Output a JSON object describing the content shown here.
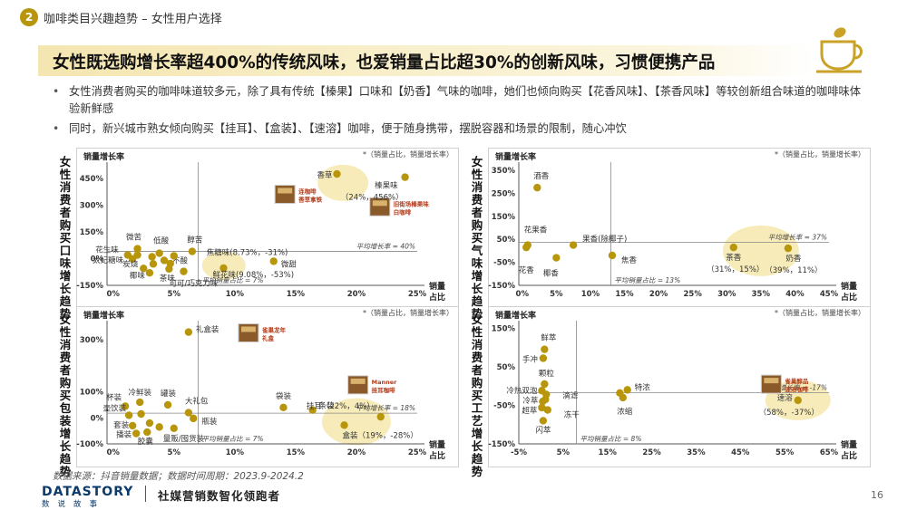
{
  "header": {
    "section_number": "2",
    "section_title": "咖啡类目兴趣趋势 – 女性用户选择"
  },
  "headline": "女性既选购增长率超400%的传统风味，也爱销量占比超30%的创新风味，习惯便携产品",
  "bullets": [
    "女性消费者购买的咖啡味道较多元，除了具有传统【榛果】口味和【奶香】气味的咖啡，她们也倾向购买【花香风味】、【茶香风味】等较创新组合味道的咖啡味体验新鲜感",
    "同时，新兴城市熟女倾向购买【挂耳】、【盒装】、【速溶】咖啡，便于随身携带，摆脱容器和场景的限制，随心冲饮"
  ],
  "footer": {
    "source": "数据来源：抖音销量数据；数据时间周期：2023.9-2024.2",
    "logo_main": "DATASTORY",
    "logo_sub": "数说故事",
    "slogan": "社媒营销数智化领跑者",
    "page": "16"
  },
  "accent_color": "#b8960c",
  "highlight_color": "#f5e7a8",
  "icons": [
    "coffee-cup-icon"
  ],
  "chart_data": [
    {
      "id": "taste",
      "type": "scatter",
      "side_title": "女性消费者购买口味增长趋势",
      "ylabel": "销量增长率",
      "xlabel_top": "销量",
      "xlabel_bottom": "占比",
      "legend_note": "*（销量占比，销量增长率）",
      "xlim": [
        -0.5,
        25
      ],
      "ylim": [
        -150,
        520
      ],
      "x_ticks": [
        {
          "v": 0,
          "t": "0%"
        },
        {
          "v": 5,
          "t": "5%"
        },
        {
          "v": 10,
          "t": "10%"
        },
        {
          "v": 15,
          "t": "15%"
        },
        {
          "v": 20,
          "t": "20%"
        },
        {
          "v": 25,
          "t": "25%"
        }
      ],
      "y_ticks": [
        {
          "v": 450,
          "t": "450%"
        },
        {
          "v": 300,
          "t": "300%"
        },
        {
          "v": 150,
          "t": "150%"
        },
        {
          "v": 0,
          "t": "0%"
        },
        {
          "v": -150,
          "t": "-150%"
        }
      ],
      "avg_x": 7,
      "avg_y": 40,
      "avg_x_label": "平均销量占比 = 7%",
      "avg_y_label": "平均增长率 = 40%",
      "highlights": [
        {
          "x": 18.9,
          "y": 424,
          "rx": 28,
          "ry": 20
        },
        {
          "x": 9.1,
          "y": -39,
          "rx": 24,
          "ry": 16
        }
      ],
      "points": [
        {
          "label": "香草",
          "x": 18.4,
          "y": 474,
          "la": "end",
          "dx": -5,
          "dy": 4
        },
        {
          "label": "榛果味",
          "x": 24,
          "y": 456,
          "la": "end",
          "dx": -8,
          "dy": 12
        },
        {
          "label": "（24%，456%）",
          "x": 24,
          "y": 456,
          "la": "end",
          "dx": -2,
          "dy": 25,
          "text_only": true
        },
        {
          "label": "焦糖味(8.73%，-31%)",
          "x": 8.73,
          "y": -31,
          "la": "start",
          "dx": -14,
          "dy": -10,
          "text_only": true
        },
        {
          "label": "鲜花味(9.08%，-53%)",
          "x": 9.08,
          "y": -53,
          "la": "start",
          "dx": -12,
          "dy": 10
        },
        {
          "label": "微甜",
          "x": 13.2,
          "y": -15,
          "la": "start",
          "dx": 8,
          "dy": 6
        },
        {
          "label": "微苦",
          "x": 2.0,
          "y": 55,
          "la": "middle",
          "dx": -4,
          "dy": -10
        },
        {
          "label": "低酸",
          "x": 3.8,
          "y": 30,
          "la": "middle",
          "dx": 2,
          "dy": -11
        },
        {
          "label": "醇苦",
          "x": 6.5,
          "y": 40,
          "la": "middle",
          "dx": 3,
          "dy": -10
        },
        {
          "label": "花生味",
          "x": 1.2,
          "y": 20,
          "la": "end",
          "dx": -10,
          "dy": -3
        },
        {
          "label": "太妃糖味",
          "x": 1.6,
          "y": -2,
          "la": "end",
          "dx": -10,
          "dy": 4
        },
        {
          "label": "不酸",
          "x": 4.2,
          "y": -10,
          "la": "start",
          "dx": 9,
          "dy": 3
        },
        {
          "label": "炭烧",
          "x": 2.5,
          "y": -55,
          "la": "end",
          "dx": -6,
          "dy": -2
        },
        {
          "label": "椰味",
          "x": 3.0,
          "y": -80,
          "la": "end",
          "dx": -5,
          "dy": 6
        },
        {
          "label": "茶味",
          "x": 4.6,
          "y": -58,
          "la": "middle",
          "dx": -2,
          "dy": 13
        },
        {
          "label": "可可/巧克力味",
          "x": 5.8,
          "y": -72,
          "la": "start",
          "dx": -16,
          "dy": 16
        },
        {
          "label": "",
          "x": 2.0,
          "y": 20
        },
        {
          "label": "",
          "x": 3.2,
          "y": 10
        },
        {
          "label": "",
          "x": 5.0,
          "y": 15
        },
        {
          "label": "",
          "x": 3.3,
          "y": -30
        },
        {
          "label": "",
          "x": 4.7,
          "y": -28
        }
      ],
      "products": [
        {
          "x": 14.5,
          "y": 350,
          "caption": [
            "连咖啡",
            "香草拿铁"
          ]
        },
        {
          "x": 22.3,
          "y": 280,
          "caption": [
            "旧街场榛果味",
            "白咖啡"
          ]
        }
      ]
    },
    {
      "id": "aroma",
      "type": "scatter",
      "side_title": "女性消费者购买气味增长趋势",
      "ylabel": "销量增长率",
      "xlabel_top": "销量",
      "xlabel_bottom": "占比",
      "legend_note": "*（销量占比，销量增长率）",
      "xlim": [
        -0.5,
        45
      ],
      "ylim": [
        -150,
        370
      ],
      "x_ticks": [
        {
          "v": 0,
          "t": "0%"
        },
        {
          "v": 5,
          "t": "5%"
        },
        {
          "v": 10,
          "t": "10%"
        },
        {
          "v": 15,
          "t": "15%"
        },
        {
          "v": 20,
          "t": "20%"
        },
        {
          "v": 25,
          "t": "25%"
        },
        {
          "v": 30,
          "t": "30%"
        },
        {
          "v": 35,
          "t": "35%"
        },
        {
          "v": 40,
          "t": "40%"
        },
        {
          "v": 45,
          "t": "45%"
        }
      ],
      "y_ticks": [
        {
          "v": 350,
          "t": "350%"
        },
        {
          "v": 250,
          "t": "250%"
        },
        {
          "v": 150,
          "t": "150%"
        },
        {
          "v": 50,
          "t": "50%"
        },
        {
          "v": -50,
          "t": "-50%"
        },
        {
          "v": -150,
          "t": "-150%"
        }
      ],
      "avg_x": 13,
      "avg_y": 37,
      "avg_x_label": "平均销量占比 = 13%",
      "avg_y_label": "平均增长率 = 37%",
      "highlights": [
        {
          "x": 35,
          "y": 0,
          "rx": 42,
          "ry": 28
        }
      ],
      "points": [
        {
          "label": "酒香",
          "x": 2.2,
          "y": 275,
          "la": "start",
          "dx": -4,
          "dy": -10
        },
        {
          "label": "花果香",
          "x": 0.8,
          "y": 25,
          "la": "start",
          "dx": -4,
          "dy": -14
        },
        {
          "label": "花香",
          "x": 0.6,
          "y": 15,
          "la": "middle",
          "dx": 0,
          "dy": 28
        },
        {
          "label": "椰香",
          "x": 5.0,
          "y": -30,
          "la": "middle",
          "dx": -6,
          "dy": 20
        },
        {
          "label": "果香(除椰子)",
          "x": 7.5,
          "y": 25,
          "la": "start",
          "dx": 10,
          "dy": -4
        },
        {
          "label": "焦香",
          "x": 13.2,
          "y": -20,
          "la": "start",
          "dx": 10,
          "dy": 8
        },
        {
          "label": "茶香",
          "x": 31,
          "y": 15,
          "la": "middle",
          "dx": 0,
          "dy": 14
        },
        {
          "label": "（31%，15%）",
          "x": 31,
          "y": 15,
          "la": "middle",
          "dx": 2,
          "dy": 27,
          "text_only": true
        },
        {
          "label": "奶香",
          "x": 39,
          "y": 11,
          "la": "middle",
          "dx": 6,
          "dy": 14
        },
        {
          "label": "（39%，11%）",
          "x": 39,
          "y": 11,
          "la": "middle",
          "dx": 6,
          "dy": 27,
          "text_only": true
        }
      ],
      "products": []
    },
    {
      "id": "package",
      "type": "scatter",
      "side_title": "女性消费者购买包装增长趋势",
      "ylabel": "销量增长率",
      "xlabel_top": "销量",
      "xlabel_bottom": "占比",
      "legend_note": "*（销量占比，销量增长率）",
      "xlim": [
        -0.5,
        25
      ],
      "ylim": [
        -100,
        360
      ],
      "x_ticks": [
        {
          "v": 0,
          "t": "0%"
        },
        {
          "v": 5,
          "t": "5%"
        },
        {
          "v": 10,
          "t": "10%"
        },
        {
          "v": 15,
          "t": "15%"
        },
        {
          "v": 20,
          "t": "20%"
        },
        {
          "v": 25,
          "t": "25%"
        }
      ],
      "y_ticks": [
        {
          "v": 300,
          "t": "300%"
        },
        {
          "v": 100,
          "t": "100%"
        },
        {
          "v": 0,
          "t": "0%"
        },
        {
          "v": -100,
          "t": "-100%"
        }
      ],
      "avg_x": 7,
      "avg_y": 18,
      "avg_x_label": "平均销量占比 = 7%",
      "avg_y_label": "平均增长率 = 18%",
      "highlights": [
        {
          "x": 20,
          "y": -15,
          "rx": 38,
          "ry": 26
        }
      ],
      "points": [
        {
          "label": "礼盒装",
          "x": 6.2,
          "y": 330,
          "la": "start",
          "dx": 8,
          "dy": 0
        },
        {
          "label": "袋装",
          "x": 14,
          "y": 40,
          "la": "middle",
          "dx": 0,
          "dy": -10
        },
        {
          "label": "条装",
          "x": 16.4,
          "y": 30,
          "la": "start",
          "dx": 7,
          "dy": -2
        },
        {
          "label": "挂耳（22%，4%）",
          "x": 22,
          "y": 4,
          "la": "end",
          "dx": -7,
          "dy": -9
        },
        {
          "label": "盒装（19%，-28%）",
          "x": 19,
          "y": -28,
          "la": "start",
          "dx": -2,
          "dy": 14
        },
        {
          "label": "罐装",
          "x": 4.5,
          "y": 50,
          "la": "start",
          "dx": -8,
          "dy": -10
        },
        {
          "label": "大礼包",
          "x": 6.2,
          "y": 20,
          "la": "start",
          "dx": -4,
          "dy": -10
        },
        {
          "label": "瓶装",
          "x": 6.6,
          "y": -2,
          "la": "start",
          "dx": 9,
          "dy": 6
        },
        {
          "label": "量贩/囤货装",
          "x": 5.0,
          "y": -40,
          "la": "start",
          "dx": -12,
          "dy": 14
        },
        {
          "label": "胶囊",
          "x": 2.8,
          "y": -55,
          "la": "middle",
          "dx": -2,
          "dy": 13
        },
        {
          "label": "杯装",
          "x": 1.0,
          "y": 45,
          "la": "end",
          "dx": -4,
          "dy": -7
        },
        {
          "label": "冷鲜装",
          "x": 2.2,
          "y": 60,
          "la": "middle",
          "dx": 0,
          "dy": -8
        },
        {
          "label": "壶饮装",
          "x": 1.3,
          "y": 10,
          "la": "end",
          "dx": -3,
          "dy": -5
        },
        {
          "label": "套装",
          "x": 1.6,
          "y": -30,
          "la": "end",
          "dx": -4,
          "dy": 2
        },
        {
          "label": "播装",
          "x": 1.9,
          "y": -60,
          "la": "end",
          "dx": -5,
          "dy": 4
        },
        {
          "label": "",
          "x": 2.3,
          "y": 15
        },
        {
          "label": "",
          "x": 3.0,
          "y": -20
        },
        {
          "label": "",
          "x": 3.8,
          "y": -35
        }
      ],
      "products": [
        {
          "x": 11.5,
          "y": 320,
          "caption": [
            "雀巢龙年",
            "礼盒"
          ]
        },
        {
          "x": 20.5,
          "y": 120,
          "caption": [
            "Manner",
            "挂耳咖啡"
          ]
        }
      ]
    },
    {
      "id": "process",
      "type": "scatter",
      "side_title": "女性消费者购买工艺增长趋势",
      "ylabel": "销量增长率",
      "xlabel_top": "销量",
      "xlabel_bottom": "占比",
      "legend_note": "*（销量占比，销量增长率）",
      "xlim": [
        -5,
        65
      ],
      "ylim": [
        -150,
        160
      ],
      "x_ticks": [
        {
          "v": -5,
          "t": "-5%"
        },
        {
          "v": 5,
          "t": "5%"
        },
        {
          "v": 15,
          "t": "15%"
        },
        {
          "v": 25,
          "t": "25%"
        },
        {
          "v": 35,
          "t": "35%"
        },
        {
          "v": 45,
          "t": "45%"
        },
        {
          "v": 55,
          "t": "55%"
        },
        {
          "v": 65,
          "t": "65%"
        }
      ],
      "y_ticks": [
        {
          "v": 150,
          "t": "150%"
        },
        {
          "v": 50,
          "t": "50%"
        },
        {
          "v": -50,
          "t": "-50%"
        },
        {
          "v": -150,
          "t": "-150%"
        }
      ],
      "avg_x": 8,
      "avg_y": -17,
      "avg_x_label": "平均销量占比 = 8%",
      "avg_y_label": "平均增长率 = -17%",
      "highlights": [
        {
          "x": 58,
          "y": -37,
          "rx": 36,
          "ry": 22
        }
      ],
      "points": [
        {
          "label": "鲜萃",
          "x": 0.8,
          "y": 95,
          "la": "start",
          "dx": -4,
          "dy": -10
        },
        {
          "label": "手冲",
          "x": 0.5,
          "y": 72,
          "la": "end",
          "dx": -6,
          "dy": 4
        },
        {
          "label": "颗粒",
          "x": 0.8,
          "y": 5,
          "la": "middle",
          "dx": 2,
          "dy": -9
        },
        {
          "label": "冷热双泡",
          "x": 0.2,
          "y": -12,
          "la": "end",
          "dx": -5,
          "dy": 3
        },
        {
          "label": "滴滤",
          "x": 1.2,
          "y": -22,
          "la": "start",
          "dx": 18,
          "dy": 4
        },
        {
          "label": "冷萃",
          "x": 0.4,
          "y": -40,
          "la": "end",
          "dx": -5,
          "dy": 2
        },
        {
          "label": "超萃",
          "x": 0.2,
          "y": -56,
          "la": "end",
          "dx": -5,
          "dy": 6
        },
        {
          "label": "冻干",
          "x": 1.5,
          "y": -62,
          "la": "start",
          "dx": 18,
          "dy": 8
        },
        {
          "label": "闪萃",
          "x": 0.5,
          "y": -90,
          "la": "middle",
          "dx": 0,
          "dy": 13
        },
        {
          "label": "特浓",
          "x": 19.5,
          "y": -10,
          "la": "start",
          "dx": 8,
          "dy": 0
        },
        {
          "label": "浓缩",
          "x": 18.5,
          "y": -30,
          "la": "middle",
          "dx": 2,
          "dy": 18
        },
        {
          "label": "速溶",
          "x": 58,
          "y": -37,
          "la": "end",
          "dx": -6,
          "dy": 0
        },
        {
          "label": "（58%，-37%）",
          "x": 58,
          "y": -37,
          "la": "middle",
          "dx": -10,
          "dy": 16,
          "text_only": true
        },
        {
          "label": "",
          "x": 1.0,
          "y": -35
        },
        {
          "label": "",
          "x": 17.8,
          "y": -18
        }
      ],
      "products": [
        {
          "x": 53,
          "y": 0,
          "caption": [
            "雀巢醇品",
            "速溶咖啡"
          ]
        }
      ]
    }
  ]
}
